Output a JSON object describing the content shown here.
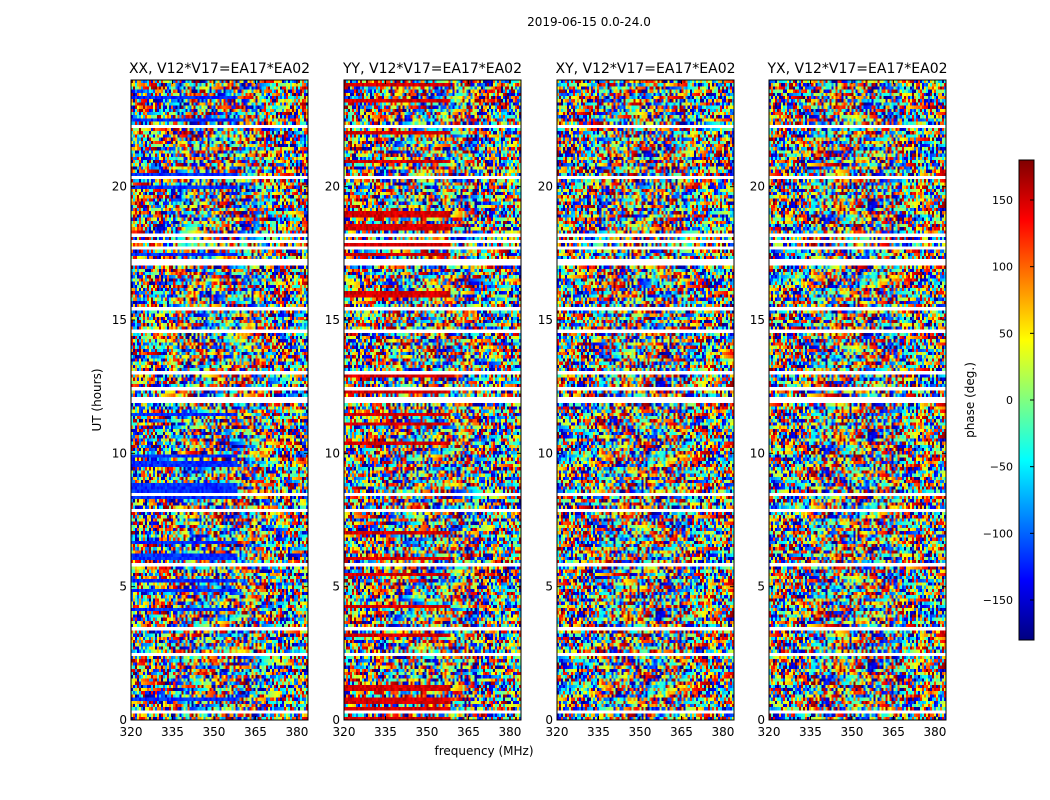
{
  "chart_data": {
    "type": "heatmap",
    "suptitle": "2019-06-15 0.0-24.0",
    "xlabel": "frequency (MHz)",
    "ylabel": "UT (hours)",
    "xlim": [
      320,
      384
    ],
    "ylim": [
      0,
      24
    ],
    "xticks": [
      320,
      335,
      350,
      365,
      380
    ],
    "yticks": [
      0,
      5,
      10,
      15,
      20
    ],
    "panels": [
      {
        "title": "XX, V12*V17=EA17*EA02",
        "pol": "XX",
        "baseline_tint": -120
      },
      {
        "title": "YY, V12*V17=EA17*EA02",
        "pol": "YY",
        "baseline_tint": 150
      },
      {
        "title": "XY, V12*V17=EA17*EA02",
        "pol": "XY",
        "baseline_tint": null
      },
      {
        "title": "YX, V12*V17=EA17*EA02",
        "pol": "YX",
        "baseline_tint": null
      }
    ],
    "flagged_intervals_ut": [
      [
        0.25,
        0.33
      ],
      [
        1.55,
        1.62
      ],
      [
        2.45,
        2.58
      ],
      [
        3.35,
        3.45
      ],
      [
        3.6,
        3.65
      ],
      [
        4.55,
        4.62
      ],
      [
        5.05,
        5.1
      ],
      [
        5.8,
        5.85
      ],
      [
        7.8,
        7.95
      ],
      [
        8.45,
        8.5
      ],
      [
        9.55,
        9.6
      ],
      [
        10.05,
        10.1
      ],
      [
        11.85,
        12.1
      ],
      [
        12.4,
        12.48
      ],
      [
        13.0,
        13.05
      ],
      [
        13.75,
        13.8
      ],
      [
        14.55,
        14.6
      ],
      [
        15.4,
        15.45
      ],
      [
        16.2,
        16.25
      ],
      [
        17.05,
        17.3
      ],
      [
        17.7,
        17.75
      ],
      [
        17.9,
        18.05
      ],
      [
        18.15,
        18.25
      ],
      [
        18.7,
        18.75
      ],
      [
        20.3,
        20.4
      ],
      [
        21.1,
        21.15
      ],
      [
        22.2,
        22.35
      ],
      [
        23.35,
        23.45
      ]
    ],
    "colorbar": {
      "label": "phase (deg.)",
      "colormap": "jet",
      "range": [
        -180,
        180
      ],
      "ticks": [
        150,
        100,
        50,
        0,
        -50,
        -100,
        -150
      ],
      "tick_labels": [
        "150",
        "100",
        "50",
        "0",
        "−50",
        "−100",
        "−150"
      ]
    },
    "resolution": {
      "freq_channels": 88,
      "time_rows": 200
    }
  }
}
